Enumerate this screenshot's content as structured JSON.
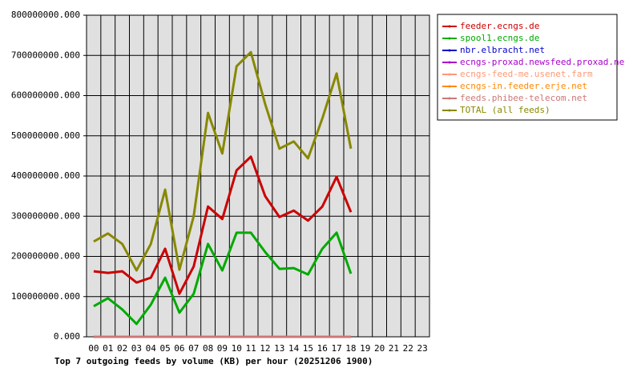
{
  "chart_data": {
    "type": "line",
    "title": "Top 7 outgoing feeds by volume (KB) per hour (20251206 1900)",
    "categories": [
      "00",
      "01",
      "02",
      "03",
      "04",
      "05",
      "06",
      "07",
      "08",
      "09",
      "10",
      "11",
      "12",
      "13",
      "14",
      "15",
      "16",
      "17",
      "18",
      "19",
      "20",
      "21",
      "22",
      "23"
    ],
    "series": [
      {
        "name": "feeder.ecngs.de",
        "color": "#cc0000",
        "values": [
          163000000,
          159000000,
          163000000,
          135000000,
          147000000,
          219000000,
          107000000,
          175000000,
          324000000,
          293000000,
          414000000,
          448000000,
          350000000,
          298000000,
          314000000,
          289000000,
          324000000,
          398000000,
          310000000,
          null,
          null,
          null,
          null,
          null
        ]
      },
      {
        "name": "spool1.ecngs.de",
        "color": "#00aa00",
        "values": [
          76000000,
          96000000,
          68000000,
          32000000,
          80000000,
          147000000,
          60000000,
          107000000,
          231000000,
          165000000,
          259000000,
          259000000,
          211000000,
          169000000,
          171000000,
          155000000,
          219000000,
          259000000,
          157000000,
          null,
          null,
          null,
          null,
          null
        ]
      },
      {
        "name": "nbr.elbracht.net",
        "color": "#0000cc",
        "values": [
          0,
          0,
          0,
          0,
          0,
          0,
          0,
          0,
          0,
          0,
          0,
          0,
          0,
          0,
          0,
          0,
          0,
          0,
          0,
          null,
          null,
          null,
          null,
          null
        ]
      },
      {
        "name": "ecngs-proxad.newsfeed.proxad.net",
        "color": "#aa00cc",
        "values": [
          0,
          0,
          0,
          0,
          0,
          0,
          0,
          0,
          0,
          0,
          0,
          0,
          0,
          0,
          0,
          0,
          0,
          0,
          0,
          null,
          null,
          null,
          null,
          null
        ]
      },
      {
        "name": "ecngs-feed-me.usenet.farm",
        "color": "#ff9977",
        "values": [
          0,
          0,
          0,
          0,
          0,
          0,
          0,
          0,
          0,
          0,
          0,
          0,
          0,
          0,
          0,
          0,
          0,
          0,
          0,
          null,
          null,
          null,
          null,
          null
        ]
      },
      {
        "name": "ecngs-in.feeder.erje.net",
        "color": "#ff8800",
        "values": [
          0,
          0,
          0,
          0,
          0,
          0,
          0,
          0,
          0,
          0,
          0,
          0,
          0,
          0,
          0,
          0,
          0,
          0,
          0,
          null,
          null,
          null,
          null,
          null
        ]
      },
      {
        "name": "feeds.phibee-telecom.net",
        "color": "#cc7777",
        "values": [
          0,
          0,
          0,
          0,
          0,
          0,
          0,
          0,
          0,
          0,
          0,
          0,
          0,
          0,
          0,
          0,
          0,
          0,
          0,
          null,
          null,
          null,
          null,
          null
        ]
      },
      {
        "name": "TOTAL (all feeds)",
        "color": "#888800",
        "values": [
          237000000,
          257000000,
          231000000,
          165000000,
          231000000,
          366000000,
          167000000,
          300000000,
          557000000,
          456000000,
          673000000,
          708000000,
          579000000,
          468000000,
          486000000,
          444000000,
          543000000,
          655000000,
          468000000,
          null,
          null,
          null,
          null,
          null
        ]
      }
    ],
    "ylim": [
      0,
      800000000
    ],
    "yticks": [
      {
        "value": 0,
        "label": "0.000"
      },
      {
        "value": 100000000,
        "label": "100000000.000"
      },
      {
        "value": 200000000,
        "label": "200000000.000"
      },
      {
        "value": 300000000,
        "label": "300000000.000"
      },
      {
        "value": 400000000,
        "label": "400000000.000"
      },
      {
        "value": 500000000,
        "label": "500000000.000"
      },
      {
        "value": 600000000,
        "label": "600000000.000"
      },
      {
        "value": 700000000,
        "label": "700000000.000"
      },
      {
        "value": 800000000,
        "label": "800000000.000"
      }
    ],
    "grid": true,
    "legend": "right"
  }
}
